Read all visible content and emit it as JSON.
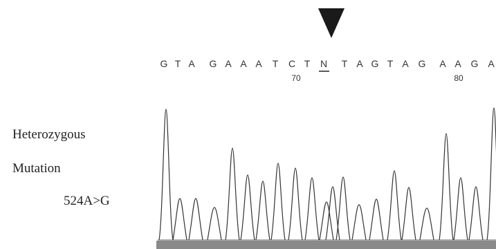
{
  "labels": [
    "Heterozygous",
    "Mutation",
    "524A>G"
  ],
  "sequence": {
    "bases": [
      "G",
      "T",
      "A",
      "G",
      "A",
      "A",
      "A",
      "T",
      "C",
      "T",
      "N",
      "T",
      "A",
      "G",
      "T",
      "A",
      "G",
      "A",
      "A",
      "G",
      "A"
    ],
    "positions": [
      "70",
      "80"
    ]
  }
}
